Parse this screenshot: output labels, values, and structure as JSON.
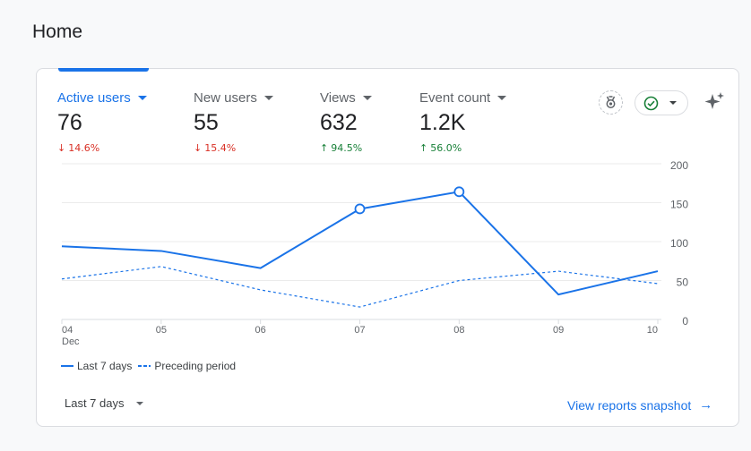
{
  "page": {
    "title": "Home"
  },
  "metrics": [
    {
      "label": "Active users",
      "value": "76",
      "change": "14.6%",
      "direction": "down"
    },
    {
      "label": "New users",
      "value": "55",
      "change": "15.4%",
      "direction": "down"
    },
    {
      "label": "Views",
      "value": "632",
      "change": "94.5%",
      "direction": "up"
    },
    {
      "label": "Event count",
      "value": "1.2K",
      "change": "56.0%",
      "direction": "up"
    }
  ],
  "icons": {
    "badge": "insights-badge-icon",
    "status": "check-circle-icon",
    "sparkle": "sparkle-icon"
  },
  "colors": {
    "accent": "#1a73e8",
    "down": "#d93025",
    "up": "#188038"
  },
  "chart_data": {
    "type": "line",
    "categories": [
      "04",
      "05",
      "06",
      "07",
      "08",
      "09",
      "10"
    ],
    "x_sublabel": "Dec",
    "series": [
      {
        "name": "Last 7 days",
        "values": [
          94,
          88,
          66,
          142,
          164,
          32,
          62
        ],
        "style": "solid",
        "color": "#1a73e8"
      },
      {
        "name": "Preceding period",
        "values": [
          52,
          68,
          38,
          16,
          50,
          62,
          46
        ],
        "style": "dashed",
        "color": "#1a73e8"
      }
    ],
    "highlight_points": [
      3,
      4
    ],
    "y_ticks": [
      "0",
      "50",
      "100",
      "150",
      "200"
    ],
    "ylim": [
      0,
      200
    ],
    "grid": true,
    "y_axis_position": "right",
    "legend_position": "bottom-left"
  },
  "footer": {
    "period_label": "Last 7 days",
    "snapshot_link": "View reports snapshot"
  }
}
